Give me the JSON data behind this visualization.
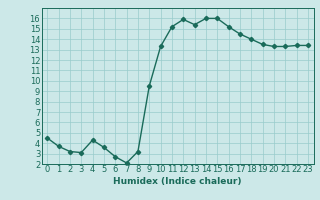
{
  "x": [
    0,
    1,
    2,
    3,
    4,
    5,
    6,
    7,
    8,
    9,
    10,
    11,
    12,
    13,
    14,
    15,
    16,
    17,
    18,
    19,
    20,
    21,
    22,
    23
  ],
  "y": [
    4.5,
    3.7,
    3.2,
    3.1,
    4.3,
    3.6,
    2.7,
    2.1,
    3.2,
    9.5,
    13.3,
    15.2,
    15.9,
    15.4,
    16.0,
    16.0,
    15.2,
    14.5,
    14.0,
    13.5,
    13.3,
    13.3,
    13.4,
    13.4
  ],
  "line_color": "#1a6b5a",
  "marker": "D",
  "marker_size": 2.2,
  "bg_color": "#cce8e8",
  "grid_color": "#99cccc",
  "xlabel": "Humidex (Indice chaleur)",
  "xlabel_fontsize": 6.5,
  "xlim": [
    -0.5,
    23.5
  ],
  "ylim": [
    2,
    17
  ],
  "yticks": [
    2,
    3,
    4,
    5,
    6,
    7,
    8,
    9,
    10,
    11,
    12,
    13,
    14,
    15,
    16
  ],
  "xticks": [
    0,
    1,
    2,
    3,
    4,
    5,
    6,
    7,
    8,
    9,
    10,
    11,
    12,
    13,
    14,
    15,
    16,
    17,
    18,
    19,
    20,
    21,
    22,
    23
  ],
  "tick_fontsize": 6.0,
  "linewidth": 1.0
}
